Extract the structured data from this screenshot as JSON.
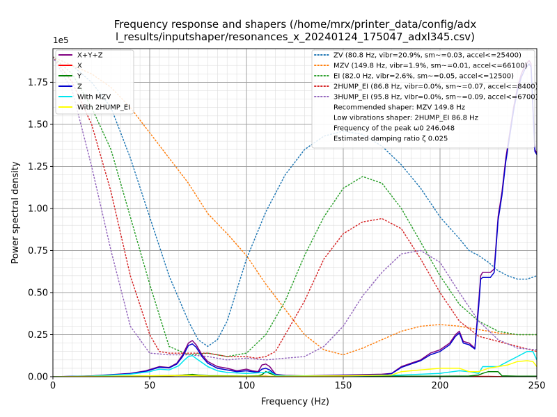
{
  "chart_data": {
    "type": "line",
    "title_line1": "Frequency response and shapers (/home/mrx/printer_data/config/adx",
    "title_line2": "l_results/inputshaper/resonances_x_20240124_175047_adxl345.csv)",
    "xlabel": "Frequency (Hz)",
    "ylabel": "Power spectral density",
    "y_offset_label": "1e5",
    "xlim": [
      0,
      250
    ],
    "ylim": [
      0,
      1.95
    ],
    "x_ticks": [
      0,
      50,
      100,
      150,
      200,
      250
    ],
    "x_tick_labels": [
      "0",
      "50",
      "100",
      "150",
      "200",
      "250"
    ],
    "y_ticks": [
      0,
      0.25,
      0.5,
      0.75,
      1.0,
      1.25,
      1.5,
      1.75
    ],
    "y_tick_labels": [
      "0.00",
      "0.25",
      "0.50",
      "0.75",
      "1.00",
      "1.25",
      "1.50",
      "1.75"
    ],
    "grid": true,
    "psd_legend_position": "top-left",
    "shaper_legend_position": "top-right",
    "series": [
      {
        "name": "X+Y+Z",
        "color": "#800080",
        "style": "solid",
        "width": 1.5,
        "x": [
          0,
          20,
          40,
          48,
          55,
          60,
          64,
          67,
          70,
          72,
          74,
          77,
          80,
          85,
          90,
          95,
          100,
          103,
          106,
          108,
          110,
          112,
          115,
          120,
          130,
          150,
          170,
          175,
          180,
          185,
          190,
          195,
          200,
          205,
          208,
          210,
          212,
          215,
          218,
          220,
          221,
          222,
          224,
          226,
          228,
          230,
          232,
          234,
          236,
          238,
          240,
          242,
          244,
          246,
          247,
          248,
          249,
          250
        ],
        "y": [
          0,
          0.005,
          0.02,
          0.035,
          0.06,
          0.055,
          0.08,
          0.13,
          0.2,
          0.215,
          0.19,
          0.13,
          0.09,
          0.06,
          0.05,
          0.035,
          0.045,
          0.035,
          0.03,
          0.07,
          0.075,
          0.06,
          0.015,
          0.008,
          0.005,
          0.01,
          0.015,
          0.02,
          0.06,
          0.08,
          0.1,
          0.14,
          0.16,
          0.2,
          0.25,
          0.27,
          0.21,
          0.2,
          0.17,
          0.45,
          0.6,
          0.62,
          0.62,
          0.62,
          0.64,
          0.95,
          1.1,
          1.3,
          1.45,
          1.6,
          1.72,
          1.8,
          1.85,
          1.88,
          1.86,
          1.6,
          1.35,
          1.33
        ]
      },
      {
        "name": "X",
        "color": "#ff0000",
        "style": "solid",
        "width": 1.5,
        "x": [
          0,
          20,
          40,
          60,
          65,
          70,
          75,
          80,
          100,
          110,
          112,
          115,
          120,
          150,
          200,
          220,
          225,
          230,
          235,
          240,
          250
        ],
        "y": [
          0,
          0.002,
          0.003,
          0.005,
          0.008,
          0.012,
          0.008,
          0.004,
          0.003,
          0.004,
          0.003,
          0.002,
          0.002,
          0.001,
          0.001,
          0.002,
          0.002,
          0.001,
          0.001,
          0.001,
          0.001
        ]
      },
      {
        "name": "Y",
        "color": "#008000",
        "style": "solid",
        "width": 1.5,
        "x": [
          0,
          20,
          40,
          60,
          65,
          70,
          72,
          75,
          80,
          100,
          106,
          108,
          110,
          112,
          115,
          120,
          150,
          200,
          215,
          220,
          222,
          225,
          228,
          230,
          232,
          240,
          250
        ],
        "y": [
          0,
          0.002,
          0.004,
          0.006,
          0.008,
          0.012,
          0.014,
          0.01,
          0.006,
          0.004,
          0.005,
          0.012,
          0.03,
          0.02,
          0.008,
          0.004,
          0.003,
          0.003,
          0.004,
          0.01,
          0.02,
          0.03,
          0.03,
          0.03,
          0.005,
          0.003,
          0.003
        ]
      },
      {
        "name": "Z",
        "color": "#0000cd",
        "style": "solid",
        "width": 1.5,
        "x": [
          0,
          20,
          40,
          48,
          55,
          60,
          64,
          67,
          70,
          72,
          74,
          77,
          80,
          85,
          90,
          95,
          100,
          103,
          106,
          108,
          110,
          112,
          115,
          120,
          130,
          150,
          170,
          175,
          180,
          185,
          190,
          195,
          200,
          205,
          208,
          210,
          212,
          215,
          218,
          220,
          221,
          222,
          224,
          226,
          228,
          230,
          232,
          234,
          236,
          238,
          240,
          242,
          244,
          246,
          247,
          248,
          249,
          250
        ],
        "y": [
          0,
          0.004,
          0.018,
          0.032,
          0.056,
          0.052,
          0.075,
          0.12,
          0.185,
          0.195,
          0.175,
          0.12,
          0.08,
          0.05,
          0.04,
          0.03,
          0.035,
          0.03,
          0.025,
          0.045,
          0.05,
          0.04,
          0.012,
          0.006,
          0.004,
          0.008,
          0.012,
          0.018,
          0.055,
          0.075,
          0.095,
          0.13,
          0.15,
          0.19,
          0.24,
          0.26,
          0.2,
          0.19,
          0.165,
          0.42,
          0.58,
          0.59,
          0.59,
          0.59,
          0.62,
          0.93,
          1.08,
          1.28,
          1.43,
          1.58,
          1.7,
          1.78,
          1.83,
          1.86,
          1.84,
          1.6,
          1.34,
          1.32
        ]
      },
      {
        "name": "With MZV",
        "color": "#00e5ee",
        "style": "solid",
        "width": 1.5,
        "x": [
          0,
          20,
          40,
          50,
          55,
          60,
          65,
          68,
          70,
          72,
          75,
          80,
          85,
          90,
          100,
          110,
          112,
          115,
          120,
          150,
          180,
          200,
          210,
          215,
          220,
          222,
          225,
          230,
          235,
          240,
          245,
          248,
          250
        ],
        "y": [
          0,
          0.004,
          0.015,
          0.03,
          0.045,
          0.04,
          0.065,
          0.1,
          0.12,
          0.125,
          0.1,
          0.06,
          0.035,
          0.025,
          0.02,
          0.025,
          0.03,
          0.01,
          0.005,
          0.005,
          0.01,
          0.02,
          0.035,
          0.03,
          0.02,
          0.06,
          0.06,
          0.06,
          0.09,
          0.12,
          0.15,
          0.15,
          0.1
        ]
      },
      {
        "name": "With 2HUMP_EI",
        "color": "#ffff00",
        "style": "solid",
        "width": 1.5,
        "x": [
          0,
          20,
          40,
          60,
          70,
          75,
          80,
          100,
          120,
          150,
          175,
          180,
          190,
          200,
          210,
          215,
          220,
          225,
          230,
          235,
          240,
          245,
          248,
          250
        ],
        "y": [
          0,
          0.002,
          0.004,
          0.006,
          0.008,
          0.006,
          0.004,
          0.003,
          0.003,
          0.005,
          0.01,
          0.03,
          0.04,
          0.05,
          0.05,
          0.03,
          0.03,
          0.05,
          0.06,
          0.07,
          0.09,
          0.095,
          0.09,
          0.06
        ]
      },
      {
        "name": "ZV (80.8 Hz, vibr=20.9%, sm~=0.03, accel<=25400)",
        "color": "#1f77b4",
        "style": "dotted",
        "width": 1.5,
        "x": [
          0,
          10,
          20,
          30,
          40,
          50,
          60,
          70,
          75,
          80,
          85,
          90,
          100,
          110,
          120,
          130,
          140,
          150,
          160,
          170,
          180,
          190,
          200,
          210,
          215,
          220,
          225,
          230,
          235,
          240,
          245,
          250
        ],
        "y": [
          1.9,
          1.85,
          1.75,
          1.6,
          1.3,
          0.95,
          0.6,
          0.33,
          0.22,
          0.18,
          0.22,
          0.33,
          0.7,
          0.98,
          1.2,
          1.35,
          1.43,
          1.46,
          1.44,
          1.37,
          1.26,
          1.12,
          0.95,
          0.82,
          0.75,
          0.72,
          0.68,
          0.63,
          0.6,
          0.58,
          0.58,
          0.6
        ]
      },
      {
        "name": "MZV (149.8 Hz, vibr=1.9%, sm~=0.01, accel<=66100)",
        "color": "#ff7f0e",
        "style": "dotted",
        "width": 1.5,
        "x": [
          0,
          10,
          20,
          30,
          40,
          50,
          60,
          70,
          80,
          90,
          100,
          110,
          120,
          130,
          140,
          150,
          160,
          170,
          180,
          190,
          200,
          210,
          220,
          230,
          240,
          250
        ],
        "y": [
          1.9,
          1.85,
          1.8,
          1.72,
          1.6,
          1.45,
          1.3,
          1.15,
          0.97,
          0.85,
          0.72,
          0.55,
          0.4,
          0.25,
          0.16,
          0.13,
          0.17,
          0.22,
          0.27,
          0.3,
          0.31,
          0.3,
          0.28,
          0.26,
          0.25,
          0.25
        ]
      },
      {
        "name": "EI (82.0 Hz, vibr=2.6%, sm~=0.05, accel<=12500)",
        "color": "#2ca02c",
        "style": "dotted",
        "width": 1.5,
        "x": [
          0,
          10,
          20,
          30,
          40,
          50,
          60,
          70,
          80,
          90,
          100,
          110,
          120,
          130,
          140,
          150,
          160,
          170,
          180,
          190,
          200,
          210,
          220,
          230,
          240,
          250
        ],
        "y": [
          1.9,
          1.8,
          1.6,
          1.35,
          0.95,
          0.55,
          0.18,
          0.13,
          0.14,
          0.12,
          0.14,
          0.25,
          0.45,
          0.72,
          0.95,
          1.12,
          1.19,
          1.15,
          1.0,
          0.8,
          0.6,
          0.43,
          0.33,
          0.27,
          0.25,
          0.25
        ]
      },
      {
        "name": "2HUMP_EI (86.8 Hz, vibr=0.0%, sm~=0.07, accel<=8400)",
        "color": "#d62728",
        "style": "dotted",
        "width": 1.5,
        "x": [
          0,
          10,
          20,
          30,
          40,
          50,
          55,
          60,
          70,
          80,
          90,
          100,
          105,
          110,
          115,
          120,
          130,
          140,
          150,
          160,
          170,
          180,
          190,
          200,
          210,
          220,
          230,
          240,
          250
        ],
        "y": [
          1.9,
          1.75,
          1.5,
          1.1,
          0.6,
          0.25,
          0.15,
          0.14,
          0.14,
          0.14,
          0.12,
          0.12,
          0.11,
          0.12,
          0.15,
          0.25,
          0.45,
          0.7,
          0.85,
          0.92,
          0.94,
          0.88,
          0.7,
          0.5,
          0.33,
          0.24,
          0.21,
          0.18,
          0.15
        ]
      },
      {
        "name": "3HUMP_EI (95.8 Hz, vibr=0.0%, sm~=0.09, accel<=6700)",
        "color": "#9467bd",
        "style": "dotted",
        "width": 1.5,
        "x": [
          0,
          10,
          20,
          30,
          40,
          50,
          60,
          70,
          80,
          90,
          100,
          110,
          120,
          130,
          140,
          150,
          160,
          170,
          180,
          190,
          200,
          210,
          220,
          230,
          240,
          250
        ],
        "y": [
          1.9,
          1.7,
          1.25,
          0.75,
          0.3,
          0.14,
          0.13,
          0.13,
          0.12,
          0.1,
          0.11,
          0.1,
          0.11,
          0.12,
          0.18,
          0.3,
          0.48,
          0.62,
          0.73,
          0.75,
          0.68,
          0.5,
          0.33,
          0.22,
          0.17,
          0.16
        ]
      }
    ],
    "shaper_notes": [
      "Recommended shaper: MZV 149.8 Hz",
      "Low vibrations shaper: 2HUMP_EI 86.8 Hz",
      "Frequency of the peak ω0 246.048",
      "Estimated damping ratio ζ 0.025"
    ]
  }
}
